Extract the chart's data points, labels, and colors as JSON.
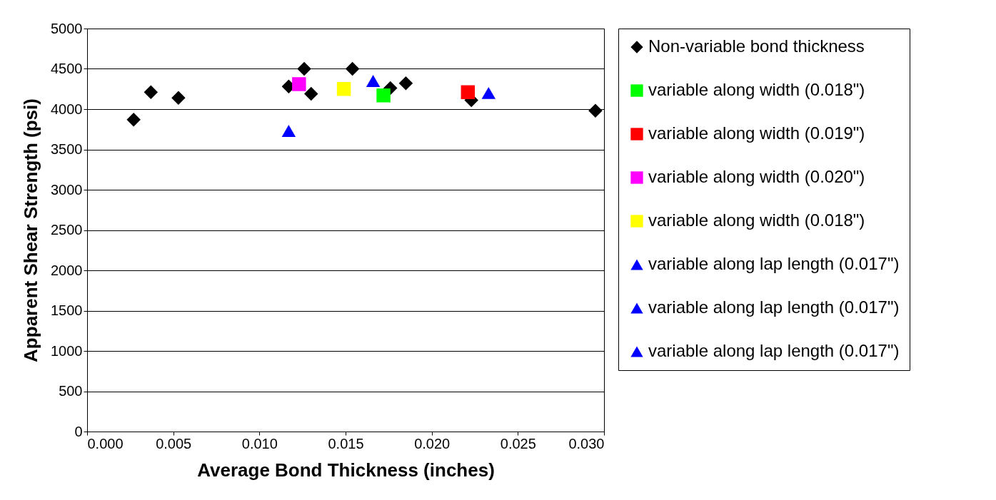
{
  "chart_data": {
    "type": "scatter",
    "xlabel": "Average Bond Thickness (inches)",
    "ylabel": "Apparent Shear Strength (psi)",
    "xlim": [
      0,
      0.03
    ],
    "ylim": [
      0,
      5000
    ],
    "xticks": [
      {
        "value": 0,
        "label": "0.000"
      },
      {
        "value": 0.005,
        "label": "0.005"
      },
      {
        "value": 0.01,
        "label": "0.010"
      },
      {
        "value": 0.015,
        "label": "0.015"
      },
      {
        "value": 0.02,
        "label": "0.020"
      },
      {
        "value": 0.025,
        "label": "0.025"
      },
      {
        "value": 0.03,
        "label": "0.030"
      }
    ],
    "yticks": [
      0,
      500,
      1000,
      1500,
      2000,
      2500,
      3000,
      3500,
      4000,
      4500,
      5000
    ],
    "grid": "y",
    "legend": "right",
    "series": [
      {
        "name": "Non-variable bond thickness",
        "color": "#000000",
        "marker": "diamond",
        "x": [
          0.0027,
          0.0037,
          0.0053,
          0.0117,
          0.0126,
          0.013,
          0.0154,
          0.0176,
          0.0185,
          0.0223,
          0.0295
        ],
        "values": [
          3870,
          4210,
          4140,
          4280,
          4500,
          4190,
          4500,
          4260,
          4320,
          4110,
          3980
        ]
      },
      {
        "name": "variable along width (0.018\")",
        "color": "#00ff00",
        "marker": "square",
        "x": [
          0.0172
        ],
        "values": [
          4170
        ]
      },
      {
        "name": "variable along width (0.019\")",
        "color": "#ff0000",
        "marker": "square",
        "x": [
          0.0221
        ],
        "values": [
          4210
        ]
      },
      {
        "name": "variable along width (0.020\")",
        "color": "#ff00ff",
        "marker": "square",
        "x": [
          0.0123
        ],
        "values": [
          4310
        ]
      },
      {
        "name": "variable along width (0.018\")",
        "color": "#ffff00",
        "marker": "square",
        "x": [
          0.0149
        ],
        "values": [
          4250
        ]
      },
      {
        "name": "variable along lap length (0.017\")",
        "color": "#0000ff",
        "marker": "triangle",
        "x": [
          0.0117
        ],
        "values": [
          3730
        ]
      },
      {
        "name": "variable along lap length (0.017\")",
        "color": "#0000ff",
        "marker": "triangle",
        "x": [
          0.0166
        ],
        "values": [
          4350
        ]
      },
      {
        "name": "variable along lap length (0.017\")",
        "color": "#0000ff",
        "marker": "triangle",
        "x": [
          0.0233
        ],
        "values": [
          4200
        ]
      }
    ]
  }
}
